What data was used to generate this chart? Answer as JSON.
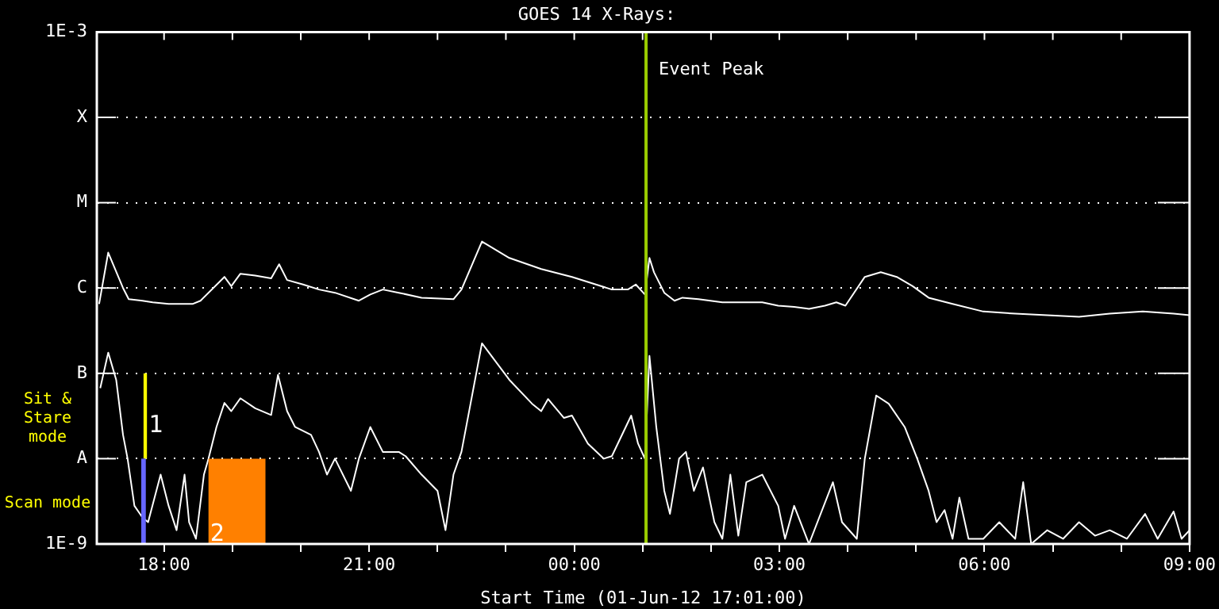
{
  "chart_data": {
    "type": "line",
    "title": "GOES 14 X-Rays:",
    "xlabel": "Start Time (01-Jun-12 17:01:00)",
    "xlim": [
      "--06-01T17:01",
      "--06-02T09:00"
    ],
    "xticks": [
      {
        "value": "--06-01T18:00",
        "label": "18:00"
      },
      {
        "value": "--06-01T19:00",
        "label": null
      },
      {
        "value": "--06-01T20:00",
        "label": null
      },
      {
        "value": "--06-01T21:00",
        "label": "21:00"
      },
      {
        "value": "--06-01T22:00",
        "label": null
      },
      {
        "value": "--06-01T23:00",
        "label": null
      },
      {
        "value": "--06-02T00:00",
        "label": "00:00"
      },
      {
        "value": "--06-02T01:00",
        "label": null
      },
      {
        "value": "--06-02T02:00",
        "label": null
      },
      {
        "value": "--06-02T03:00",
        "label": "03:00"
      },
      {
        "value": "--06-02T04:00",
        "label": null
      },
      {
        "value": "--06-02T05:00",
        "label": null
      },
      {
        "value": "--06-02T06:00",
        "label": "06:00"
      },
      {
        "value": "--06-02T07:00",
        "label": null
      },
      {
        "value": "--06-02T08:00",
        "label": null
      },
      {
        "value": "--06-02T09:00",
        "label": "09:00"
      }
    ],
    "ylim": [
      1e-09,
      0.001
    ],
    "yticks": [
      {
        "value": 1e-09,
        "label": "1E-9"
      },
      {
        "value": 1e-08,
        "label": "A"
      },
      {
        "value": 1e-07,
        "label": "B"
      },
      {
        "value": 1e-06,
        "label": "C"
      },
      {
        "value": 1e-05,
        "label": "M"
      },
      {
        "value": 0.0001,
        "label": "X"
      },
      {
        "value": 0.001,
        "label": "1E-3"
      }
    ],
    "log": true,
    "grid": "y",
    "legend": false,
    "marker": "none",
    "line_style": "solid",
    "series": [
      {
        "color": "#ffffff",
        "x": [
          "--06-01T17:03",
          "--06-01T17:11",
          "--06-01T17:24",
          "--06-01T17:29",
          "--06-01T17:41",
          "--06-01T17:50",
          "--06-01T18:04",
          "--06-01T18:25",
          "--06-01T18:32",
          "--06-01T18:53",
          "--06-01T18:59",
          "--06-01T19:07",
          "--06-01T19:20",
          "--06-01T19:34",
          "--06-01T19:41",
          "--06-01T19:48",
          "--06-01T20:02",
          "--06-01T20:16",
          "--06-01T20:30",
          "--06-01T20:51",
          "--06-01T21:01",
          "--06-01T21:12",
          "--06-01T21:26",
          "--06-01T21:46",
          "--06-01T22:14",
          "--06-01T22:21",
          "--06-01T22:39",
          "--06-01T23:03",
          "--06-01T23:31",
          "--06-01T23:58",
          "--06-02T00:19",
          "--06-02T00:33",
          "--06-02T00:47",
          "--06-02T00:54",
          "--06-02T01:02",
          "--06-02T01:06",
          "--06-02T01:10",
          "--06-02T01:19",
          "--06-02T01:28",
          "--06-02T01:35",
          "--06-02T01:49",
          "--06-02T02:10",
          "--06-02T02:24",
          "--06-02T02:45",
          "--06-02T02:59",
          "--06-02T03:13",
          "--06-02T03:26",
          "--06-02T03:40",
          "--06-02T03:50",
          "--06-02T03:58",
          "--06-02T04:15",
          "--06-02T04:29",
          "--06-02T04:43",
          "--06-02T04:57",
          "--06-02T05:11",
          "--06-02T05:32",
          "--06-02T05:59",
          "--06-02T06:27",
          "--06-02T06:55",
          "--06-02T07:23",
          "--06-02T07:50",
          "--06-02T08:19",
          "--06-02T08:46",
          "--06-02T09:00"
        ],
        "values": [
          6.5e-07,
          2.6e-06,
          1e-06,
          7.4e-07,
          7.1e-07,
          6.8e-07,
          6.5e-07,
          6.5e-07,
          7.1e-07,
          1.35e-06,
          1.05e-06,
          1.47e-06,
          1.4e-06,
          1.3e-06,
          1.9e-06,
          1.24e-06,
          1.1e-06,
          9.6e-07,
          8.8e-07,
          7.1e-07,
          8.4e-07,
          9.6e-07,
          8.8e-07,
          7.7e-07,
          7.4e-07,
          9.6e-07,
          3.5e-06,
          2.25e-06,
          1.67e-06,
          1.35e-06,
          1.1e-06,
          9.6e-07,
          9.6e-07,
          1.1e-06,
          8.4e-07,
          2.25e-06,
          1.53e-06,
          8.8e-07,
          7.1e-07,
          7.7e-07,
          7.4e-07,
          6.8e-07,
          6.8e-07,
          6.8e-07,
          6.2e-07,
          6e-07,
          5.7e-07,
          6.2e-07,
          6.8e-07,
          6.2e-07,
          1.35e-06,
          1.53e-06,
          1.35e-06,
          1.05e-06,
          7.7e-07,
          6.5e-07,
          5.3e-07,
          5e-07,
          4.8e-07,
          4.6e-07,
          5e-07,
          5.3e-07,
          5e-07,
          4.8e-07
        ]
      },
      {
        "color": "#ffffff",
        "x": [
          "--06-01T17:04",
          "--06-01T17:11",
          "--06-01T17:18",
          "--06-01T17:24",
          "--06-01T17:28",
          "--06-01T17:34",
          "--06-01T17:41",
          "--06-01T17:46",
          "--06-01T17:57",
          "--06-01T18:04",
          "--06-01T18:11",
          "--06-01T18:18",
          "--06-01T18:22",
          "--06-01T18:28",
          "--06-01T18:35",
          "--06-01T18:39",
          "--06-01T18:46",
          "--06-01T18:53",
          "--06-01T18:59",
          "--06-01T19:07",
          "--06-01T19:20",
          "--06-01T19:34",
          "--06-01T19:40",
          "--06-01T19:48",
          "--06-01T19:55",
          "--06-01T20:09",
          "--06-01T20:16",
          "--06-01T20:23",
          "--06-01T20:30",
          "--06-01T20:44",
          "--06-01T20:51",
          "--06-01T21:01",
          "--06-01T21:12",
          "--06-01T21:26",
          "--06-01T21:32",
          "--06-01T21:46",
          "--06-01T22:00",
          "--06-01T22:07",
          "--06-01T22:14",
          "--06-01T22:21",
          "--06-01T22:39",
          "--06-01T23:03",
          "--06-01T23:23",
          "--06-01T23:31",
          "--06-01T23:37",
          "--06-01T23:51",
          "--06-01T23:58",
          "--06-02T00:12",
          "--06-02T00:26",
          "--06-02T00:33",
          "--06-02T00:50",
          "--06-02T00:56",
          "--06-02T01:02",
          "--06-02T01:06",
          "--06-02T01:12",
          "--06-02T01:19",
          "--06-02T01:24",
          "--06-02T01:32",
          "--06-02T01:38",
          "--06-02T01:45",
          "--06-02T01:53",
          "--06-02T02:03",
          "--06-02T02:10",
          "--06-02T02:17",
          "--06-02T02:24",
          "--06-02T02:31",
          "--06-02T02:45",
          "--06-02T02:59",
          "--06-02T03:05",
          "--06-02T03:13",
          "--06-02T03:26",
          "--06-02T03:47",
          "--06-02T03:55",
          "--06-02T04:08",
          "--06-02T04:15",
          "--06-02T04:25",
          "--06-02T04:36",
          "--06-02T04:50",
          "--06-02T05:01",
          "--06-02T05:11",
          "--06-02T05:18",
          "--06-02T05:25",
          "--06-02T05:32",
          "--06-02T05:38",
          "--06-02T05:46",
          "--06-02T05:59",
          "--06-02T06:13",
          "--06-02T06:27",
          "--06-02T06:34",
          "--06-02T06:41",
          "--06-02T06:55",
          "--06-02T07:09",
          "--06-02T07:23",
          "--06-02T07:37",
          "--06-02T07:50",
          "--06-02T08:05",
          "--06-02T08:21",
          "--06-02T08:32",
          "--06-02T08:46",
          "--06-02T08:53",
          "--06-02T09:00"
        ],
        "values": [
          6.7e-08,
          1.75e-07,
          8.4e-08,
          1.9e-08,
          1e-08,
          2.8e-09,
          2.05e-09,
          1.8e-09,
          6.5e-09,
          2.8e-09,
          1.45e-09,
          6.5e-09,
          1.8e-09,
          1.15e-09,
          6.5e-09,
          1e-08,
          2.35e-08,
          4.5e-08,
          3.6e-08,
          5.1e-08,
          3.9e-08,
          3.25e-08,
          9.6e-08,
          3.6e-08,
          2.35e-08,
          1.9e-08,
          1.2e-08,
          6.5e-09,
          1e-08,
          4.2e-09,
          1e-08,
          2.35e-08,
          1.2e-08,
          1.2e-08,
          1.07e-08,
          6.5e-09,
          4.2e-09,
          1.45e-09,
          6.5e-09,
          1.2e-08,
          2.25e-07,
          8.4e-08,
          4.4e-08,
          3.6e-08,
          5e-08,
          3e-08,
          3.2e-08,
          1.5e-08,
          1e-08,
          1.07e-08,
          3.2e-08,
          1.5e-08,
          1e-08,
          1.6e-07,
          2.35e-08,
          4.2e-09,
          2.25e-09,
          1e-08,
          1.2e-08,
          4.2e-09,
          7.9e-09,
          1.8e-09,
          1.15e-09,
          6.5e-09,
          1.25e-09,
          5.3e-09,
          6.5e-09,
          2.8e-09,
          1.15e-09,
          2.8e-09,
          1e-09,
          5.3e-09,
          1.8e-09,
          1.15e-09,
          1e-08,
          5.5e-08,
          4.4e-08,
          2.35e-08,
          1e-08,
          4.2e-09,
          1.8e-09,
          2.5e-09,
          1.15e-09,
          3.5e-09,
          1.15e-09,
          1.15e-09,
          1.8e-09,
          1.15e-09,
          5.3e-09,
          1e-09,
          1.45e-09,
          1.15e-09,
          1.8e-09,
          1.25e-09,
          1.45e-09,
          1.15e-09,
          2.25e-09,
          1.15e-09,
          2.4e-09,
          1.15e-09,
          1.45e-09
        ]
      }
    ],
    "ref_lines": [
      {
        "axis": "x",
        "value": "--06-02T01:03",
        "label": "Event Peak",
        "color": "#99cc00"
      }
    ],
    "bands": [
      {
        "axis": "x",
        "from": "--06-01T17:42",
        "to": "--06-01T17:45",
        "label": "1",
        "color": "#ffff00"
      },
      {
        "axis": "x",
        "from": "--06-01T17:40",
        "to": "--06-01T17:44",
        "label": null,
        "color": "#6666ff"
      },
      {
        "axis": "x",
        "from": "--06-01T18:39",
        "to": "--06-01T19:29",
        "label": "2",
        "color": "#ff8000"
      }
    ],
    "annotations": [
      "Sit & Stare mode",
      "Scan mode"
    ]
  }
}
